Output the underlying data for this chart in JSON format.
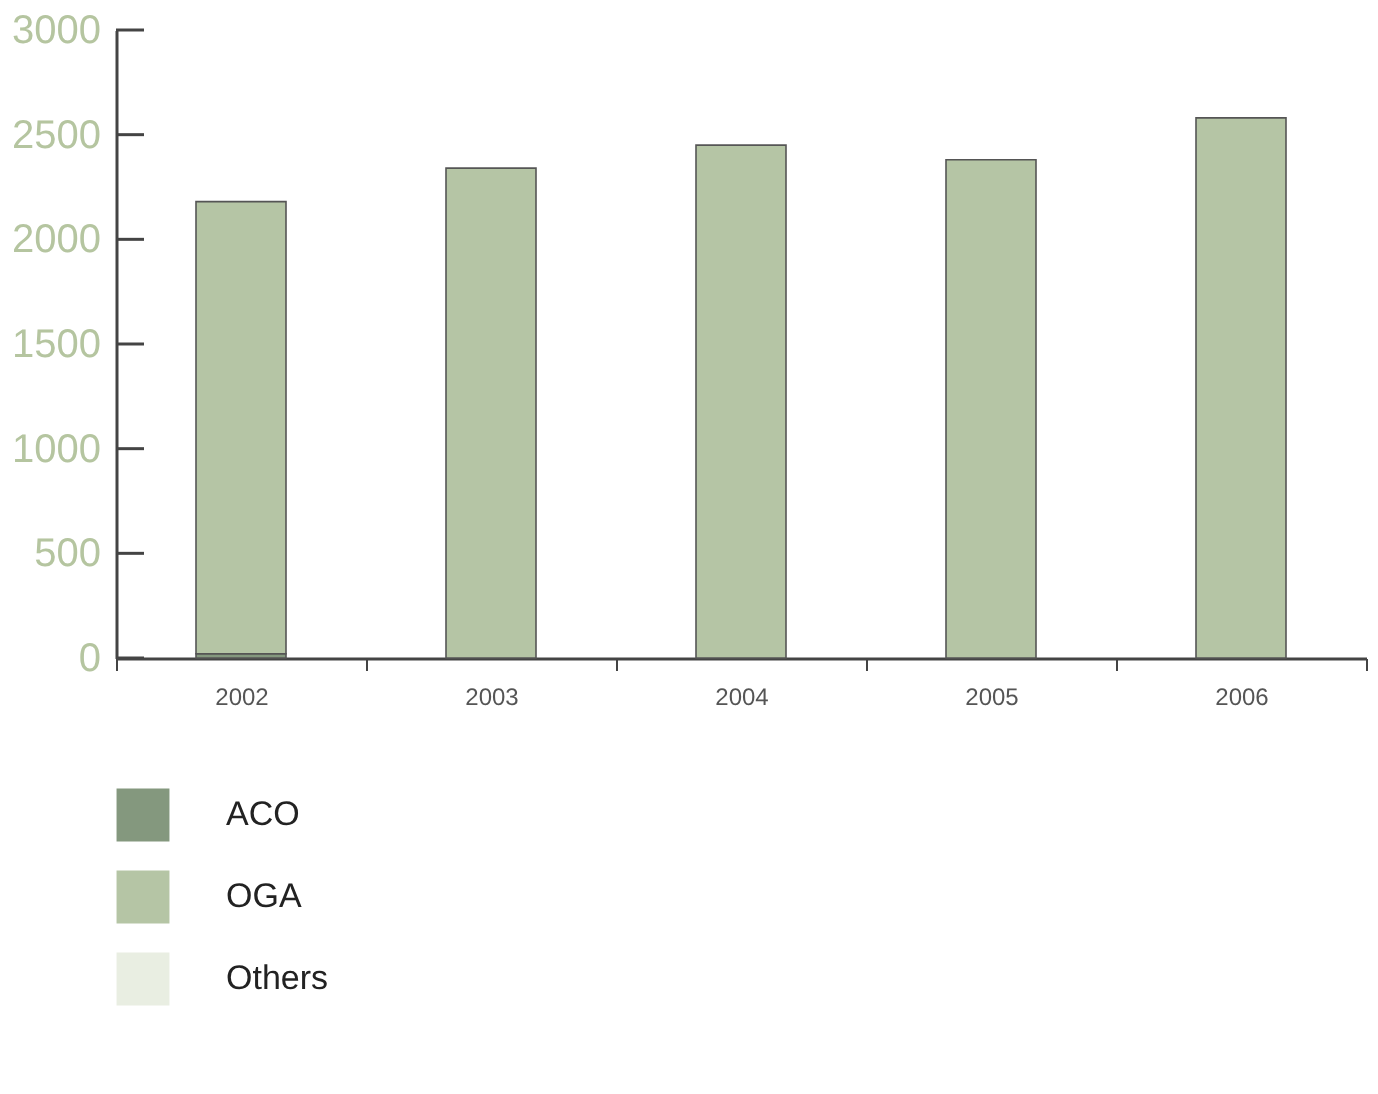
{
  "chart_data": {
    "type": "bar",
    "stacked": true,
    "categories": [
      "2002",
      "2003",
      "2004",
      "2005",
      "2006"
    ],
    "series": [
      {
        "name": "ACO",
        "color": "#84987e",
        "values": [
          20,
          0,
          0,
          0,
          0
        ]
      },
      {
        "name": "OGA",
        "color": "#b5c5a5",
        "values": [
          2160,
          2340,
          2450,
          2380,
          2580
        ]
      },
      {
        "name": "Others",
        "color": "#e9eee2",
        "values": [
          0,
          0,
          0,
          0,
          0
        ]
      }
    ],
    "ylim": [
      0,
      3000
    ],
    "yticks": [
      0,
      500,
      1000,
      1500,
      2000,
      2500,
      3000
    ],
    "grid": false,
    "legend": "bottom left"
  }
}
